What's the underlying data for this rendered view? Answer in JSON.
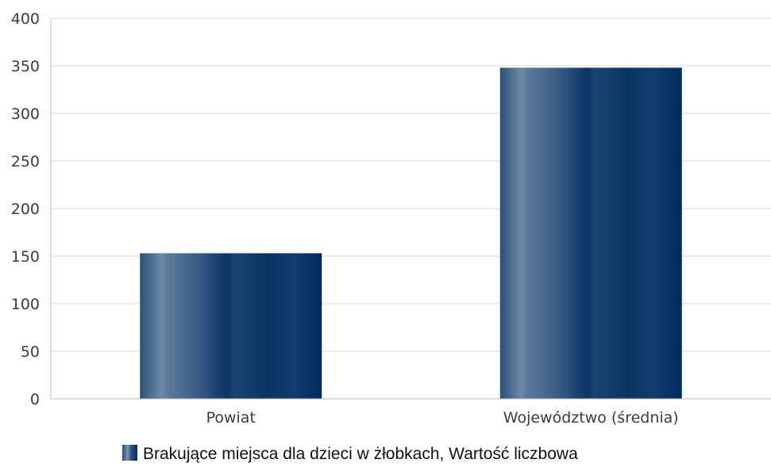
{
  "chart_data": {
    "type": "bar",
    "categories": [
      "Powiat",
      "Województwo (średnia)"
    ],
    "series": [
      {
        "name": "Brakujące miejsca dla dzieci w żłobkach, Wartość liczbowa",
        "values": [
          153,
          348
        ]
      }
    ],
    "y_ticks": [
      "0",
      "50",
      "100",
      "150",
      "200",
      "250",
      "300",
      "350",
      "400"
    ],
    "ylim": [
      0,
      400
    ],
    "grid": true,
    "legend_position": "bottom",
    "colors": {
      "bar_dark": "#002b5c",
      "bar_light": "#6f8aa8",
      "grid": "#d9d9d9",
      "axis": "#b8b8c0"
    }
  }
}
